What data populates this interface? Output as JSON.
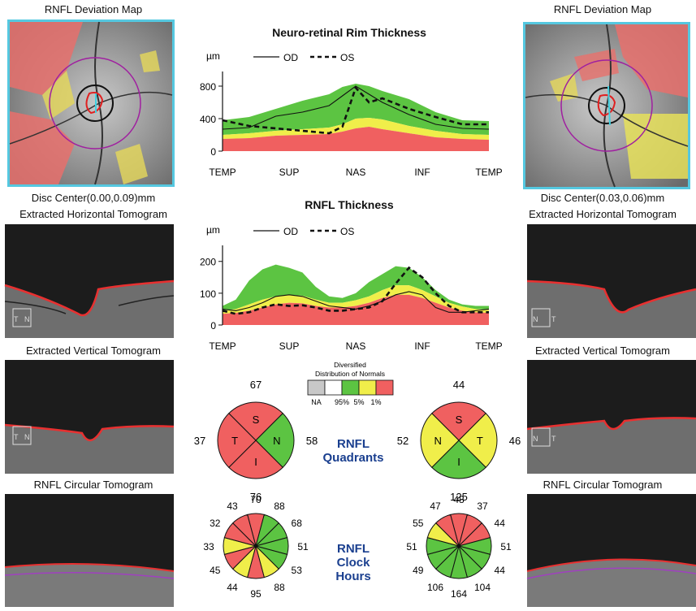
{
  "left": {
    "deviation_map_title": "RNFL Deviation Map",
    "disc_center": "Disc Center(0.00,0.09)mm",
    "horizontal_title": "Extracted Horizontal Tomogram",
    "vertical_title": "Extracted Vertical Tomogram",
    "circular_title": "RNFL Circular Tomogram",
    "h_marks": [
      "T",
      "N"
    ],
    "v_marks": [
      "T",
      "N"
    ]
  },
  "right": {
    "deviation_map_title": "RNFL Deviation Map",
    "disc_center": "Disc Center(0.03,0.06)mm",
    "horizontal_title": "Extracted Horizontal Tomogram",
    "vertical_title": "Extracted Vertical Tomogram",
    "circular_title": "RNFL Circular Tomogram",
    "h_marks": [
      "N",
      "T"
    ],
    "v_marks": [
      "N",
      "T"
    ]
  },
  "legend": {
    "title_line1": "Diversified",
    "title_line2": "Distribution of Normals",
    "labels": [
      "NA",
      "95%",
      "5%",
      "1%"
    ],
    "colors": [
      "#c8c8c8",
      "#ffffff",
      "#5cc442",
      "#f0ee4a",
      "#f06060"
    ]
  },
  "quadrants_label": [
    "RNFL",
    "Quadrants"
  ],
  "clock_label": [
    "RNFL",
    "Clock",
    "Hours"
  ],
  "colors": {
    "red": "#f06060",
    "yellow": "#f0ee4a",
    "green": "#5cc442",
    "white": "#ffffff",
    "grey": "#c8c8c8"
  },
  "chart_data": [
    {
      "type": "area",
      "title": "Neuro-retinal Rim Thickness",
      "unit": "µm",
      "legend": [
        "OD",
        "OS"
      ],
      "categories": [
        "TEMP",
        "SUP",
        "NAS",
        "INF",
        "TEMP"
      ],
      "yticks": [
        0,
        400,
        800
      ],
      "ylim": [
        0,
        900
      ],
      "x": [
        0,
        10,
        20,
        30,
        40,
        45,
        50,
        55,
        60,
        70,
        80,
        90,
        100
      ],
      "bands": {
        "red_top": [
          150,
          160,
          190,
          200,
          210,
          240,
          280,
          300,
          270,
          220,
          170,
          150,
          140
        ],
        "yellow_top": [
          200,
          220,
          250,
          270,
          290,
          330,
          400,
          410,
          390,
          310,
          250,
          210,
          200
        ],
        "green_top": [
          380,
          420,
          520,
          620,
          700,
          790,
          830,
          800,
          740,
          640,
          480,
          380,
          370
        ]
      },
      "series": [
        {
          "name": "OD",
          "style": "solid",
          "values": [
            270,
            290,
            430,
            480,
            560,
            680,
            800,
            700,
            600,
            450,
            330,
            280,
            270
          ]
        },
        {
          "name": "OS",
          "style": "dashed",
          "values": [
            380,
            310,
            280,
            250,
            220,
            300,
            780,
            600,
            650,
            520,
            420,
            330,
            330
          ]
        }
      ]
    },
    {
      "type": "area",
      "title": "RNFL Thickness",
      "unit": "µm",
      "legend": [
        "OD",
        "OS"
      ],
      "categories": [
        "TEMP",
        "SUP",
        "NAS",
        "INF",
        "TEMP"
      ],
      "yticks": [
        0,
        100,
        200
      ],
      "ylim": [
        0,
        230
      ],
      "x": [
        0,
        5,
        10,
        15,
        20,
        25,
        30,
        35,
        40,
        45,
        50,
        55,
        60,
        65,
        70,
        75,
        80,
        85,
        90,
        95,
        100
      ],
      "bands": {
        "red_top": [
          35,
          38,
          45,
          55,
          65,
          70,
          68,
          60,
          55,
          55,
          60,
          70,
          85,
          95,
          95,
          85,
          70,
          55,
          45,
          40,
          38
        ],
        "yellow_top": [
          45,
          50,
          65,
          80,
          90,
          95,
          92,
          80,
          70,
          70,
          78,
          90,
          110,
          125,
          125,
          110,
          90,
          70,
          58,
          50,
          48
        ],
        "green_top": [
          60,
          80,
          140,
          175,
          190,
          180,
          165,
          120,
          90,
          85,
          100,
          135,
          160,
          185,
          180,
          150,
          110,
          80,
          65,
          60,
          60
        ]
      },
      "series": [
        {
          "name": "OD",
          "style": "solid",
          "values": [
            50,
            45,
            55,
            70,
            90,
            95,
            90,
            75,
            60,
            55,
            50,
            60,
            75,
            95,
            105,
            95,
            55,
            40,
            40,
            45,
            50
          ]
        },
        {
          "name": "OS",
          "style": "dashed",
          "values": [
            45,
            35,
            40,
            55,
            65,
            60,
            62,
            55,
            45,
            45,
            50,
            55,
            75,
            130,
            180,
            150,
            100,
            60,
            40,
            40,
            40
          ]
        }
      ]
    },
    {
      "type": "pie",
      "name": "Left quadrants",
      "labels": [
        "S",
        "N",
        "I",
        "T"
      ],
      "values": [
        67,
        58,
        76,
        37
      ],
      "status": [
        "red",
        "green",
        "red",
        "red"
      ]
    },
    {
      "type": "pie",
      "name": "Right quadrants",
      "labels": [
        "S",
        "T",
        "I",
        "N"
      ],
      "values": [
        44,
        46,
        125,
        52
      ],
      "status": [
        "red",
        "yellow",
        "green",
        "yellow"
      ]
    },
    {
      "type": "pie",
      "name": "Left clock hours",
      "values": [
        70,
        88,
        68,
        51,
        53,
        88,
        95,
        44,
        45,
        33,
        32,
        43
      ],
      "status": [
        "red",
        "green",
        "green",
        "green",
        "green",
        "yellow",
        "red",
        "yellow",
        "red",
        "yellow",
        "red",
        "red"
      ]
    },
    {
      "type": "pie",
      "name": "Right clock hours",
      "values": [
        48,
        37,
        44,
        51,
        44,
        104,
        164,
        106,
        49,
        51,
        55,
        47
      ],
      "status": [
        "red",
        "red",
        "red",
        "green",
        "green",
        "green",
        "green",
        "green",
        "green",
        "green",
        "yellow",
        "red"
      ]
    }
  ]
}
